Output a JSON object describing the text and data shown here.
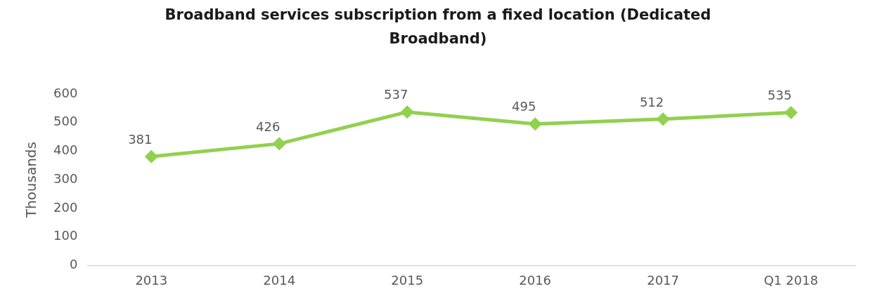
{
  "chart_data": {
    "type": "line",
    "title": "Broadband services subscription from a fixed location (Dedicated Broadband)",
    "ylabel": "Thousands",
    "categories": [
      "2013",
      "2014",
      "2015",
      "2016",
      "2017",
      "Q1 2018"
    ],
    "series": [
      {
        "color": "#92d050",
        "values": [
          381,
          426,
          537,
          495,
          512,
          535
        ]
      }
    ],
    "ylim": [
      0,
      600
    ],
    "yticks": [
      0,
      100,
      200,
      300,
      400,
      500,
      600
    ],
    "grid": false,
    "legend": false,
    "marker": "diamond",
    "line_style": "solid",
    "data_labels": true
  }
}
